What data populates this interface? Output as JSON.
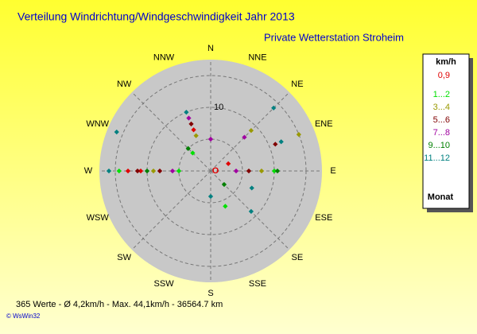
{
  "chart_data": {
    "type": "polar-scatter",
    "title": "Verteilung Windrichtung/Windgeschwindigkeit  Jahr 2013",
    "subtitle": "Private Wetterstation Stroheim",
    "directions": [
      "N",
      "NNE",
      "NE",
      "ENE",
      "E",
      "ESE",
      "SE",
      "SSE",
      "S",
      "SSW",
      "SW",
      "WSW",
      "W",
      "WNW",
      "NW",
      "NNW"
    ],
    "rlim": [
      0,
      17.5
    ],
    "rticks": [
      10
    ],
    "legend_title": "km/h",
    "legend_footer": "Monat",
    "series": [
      {
        "name": "0,9",
        "color": "#e00000",
        "theta": [
          "W",
          "W",
          "NNW",
          "ENE"
        ],
        "values": [
          13,
          11,
          7,
          3
        ]
      },
      {
        "name": "1...2",
        "color": "#00e000",
        "theta": [
          "W",
          "W",
          "E",
          "SSE",
          "NW"
        ],
        "values": [
          14.4,
          5,
          10,
          6,
          4
        ]
      },
      {
        "name": "3...4",
        "color": "#999900",
        "theta": [
          "ENE",
          "NE",
          "E",
          "W",
          "NNW"
        ],
        "values": [
          15,
          9,
          8,
          9,
          6
        ]
      },
      {
        "name": "5...6",
        "color": "#800000",
        "theta": [
          "ENE",
          "W",
          "NNW",
          "E",
          "W"
        ],
        "values": [
          11,
          11.5,
          8,
          6,
          8
        ]
      },
      {
        "name": "7...8",
        "color": "#a000a0",
        "theta": [
          "NE",
          "NNW",
          "E",
          "W",
          "N"
        ],
        "values": [
          7.5,
          9,
          4,
          6,
          5
        ]
      },
      {
        "name": "9...10",
        "color": "#008000",
        "theta": [
          "W",
          "E",
          "NW",
          "SE"
        ],
        "values": [
          10,
          10.5,
          5,
          3
        ]
      },
      {
        "name": "11...12",
        "color": "#008080",
        "theta": [
          "WNW",
          "NE",
          "ENE",
          "SE",
          "S",
          "W",
          "NNW",
          "ESE"
        ],
        "values": [
          16,
          14,
          12,
          9,
          4,
          16,
          10,
          7
        ]
      }
    ],
    "footer": "365 Werte   -   Ø 4,2km/h   -   Max. 44,1km/h   -   36564.7 km",
    "credit": "© WsWin32"
  }
}
